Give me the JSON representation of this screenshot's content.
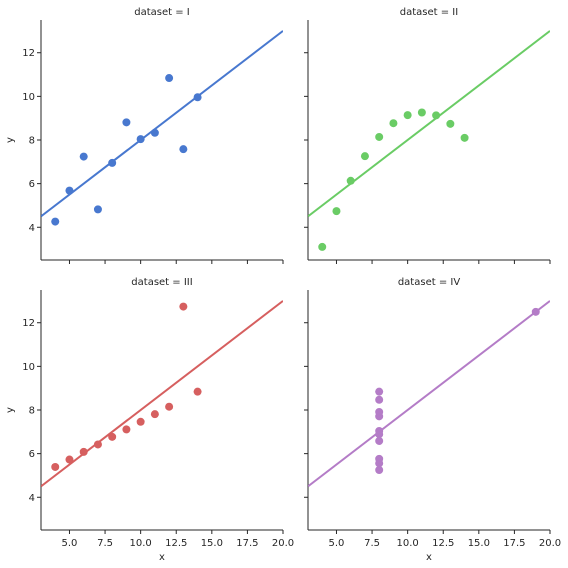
{
  "chart_data": [
    {
      "type": "scatter",
      "title": "dataset = I",
      "xlabel": "",
      "ylabel": "y",
      "xlim": [
        3,
        20
      ],
      "ylim": [
        2.5,
        13.5
      ],
      "xticks": [],
      "yticks": [
        4,
        6,
        8,
        10,
        12
      ],
      "color": "#4878cf",
      "points": [
        [
          10,
          8.04
        ],
        [
          8,
          6.95
        ],
        [
          13,
          7.58
        ],
        [
          9,
          8.81
        ],
        [
          11,
          8.33
        ],
        [
          14,
          9.96
        ],
        [
          6,
          7.24
        ],
        [
          4,
          4.26
        ],
        [
          12,
          10.84
        ],
        [
          7,
          4.82
        ],
        [
          5,
          5.68
        ]
      ],
      "regression": {
        "intercept": 3.0,
        "slope": 0.5
      }
    },
    {
      "type": "scatter",
      "title": "dataset = II",
      "xlabel": "",
      "ylabel": "",
      "xlim": [
        3,
        20
      ],
      "ylim": [
        2.5,
        13.5
      ],
      "xticks": [],
      "yticks": [],
      "color": "#6acc65",
      "points": [
        [
          10,
          9.14
        ],
        [
          8,
          8.14
        ],
        [
          13,
          8.74
        ],
        [
          9,
          8.77
        ],
        [
          11,
          9.26
        ],
        [
          14,
          8.1
        ],
        [
          6,
          6.13
        ],
        [
          4,
          3.1
        ],
        [
          12,
          9.13
        ],
        [
          7,
          7.26
        ],
        [
          5,
          4.74
        ]
      ],
      "regression": {
        "intercept": 3.0,
        "slope": 0.5
      }
    },
    {
      "type": "scatter",
      "title": "dataset = III",
      "xlabel": "x",
      "ylabel": "y",
      "xlim": [
        3,
        20
      ],
      "ylim": [
        2.5,
        13.5
      ],
      "xticks": [
        "5.0",
        "7.5",
        "10.0",
        "12.5",
        "15.0",
        "17.5",
        "20.0"
      ],
      "yticks": [
        4,
        6,
        8,
        10,
        12
      ],
      "color": "#d65f5f",
      "points": [
        [
          10,
          7.46
        ],
        [
          8,
          6.77
        ],
        [
          13,
          12.74
        ],
        [
          9,
          7.11
        ],
        [
          11,
          7.81
        ],
        [
          14,
          8.84
        ],
        [
          6,
          6.08
        ],
        [
          4,
          5.39
        ],
        [
          12,
          8.15
        ],
        [
          7,
          6.42
        ],
        [
          5,
          5.73
        ]
      ],
      "regression": {
        "intercept": 3.0,
        "slope": 0.5
      }
    },
    {
      "type": "scatter",
      "title": "dataset = IV",
      "xlabel": "x",
      "ylabel": "",
      "xlim": [
        3,
        20
      ],
      "ylim": [
        2.5,
        13.5
      ],
      "xticks": [
        "5.0",
        "7.5",
        "10.0",
        "12.5",
        "15.0",
        "17.5",
        "20.0"
      ],
      "yticks": [],
      "color": "#b47cc7",
      "points": [
        [
          8,
          6.58
        ],
        [
          8,
          5.76
        ],
        [
          8,
          7.71
        ],
        [
          8,
          8.84
        ],
        [
          8,
          8.47
        ],
        [
          8,
          7.04
        ],
        [
          8,
          5.25
        ],
        [
          19,
          12.5
        ],
        [
          8,
          5.56
        ],
        [
          8,
          7.91
        ],
        [
          8,
          6.89
        ]
      ],
      "regression": {
        "intercept": 3.0,
        "slope": 0.5
      }
    }
  ]
}
